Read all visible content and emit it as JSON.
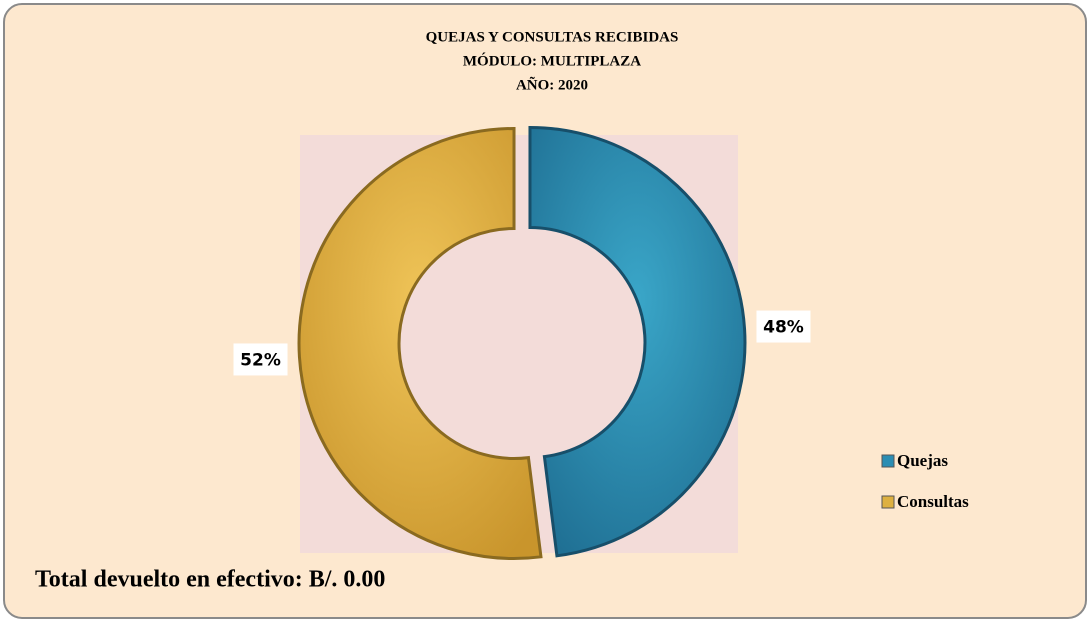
{
  "chart_data": {
    "type": "donut",
    "title": [
      "QUEJAS Y CONSULTAS RECIBIDAS",
      "MÓDULO: MULTIPLAZA",
      "AÑO: 2020"
    ],
    "categories": [
      "Quejas",
      "Consultas"
    ],
    "values": [
      48,
      52
    ],
    "value_labels": [
      "48%",
      "52%"
    ],
    "colors": [
      "#2b8db3",
      "#ddb040"
    ],
    "legend": "right",
    "annotation": "Total devuelto en efectivo: B/. 0.00"
  }
}
